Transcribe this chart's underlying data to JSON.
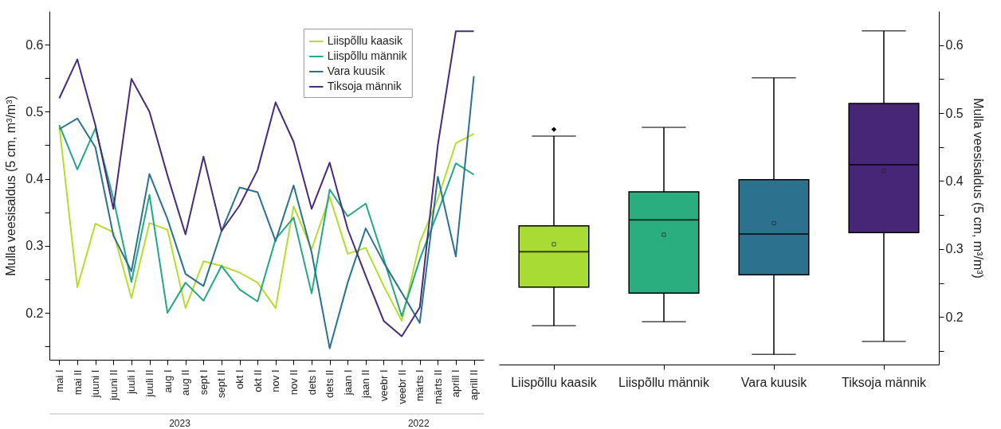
{
  "chart_data": [
    {
      "type": "line",
      "ylabel": "Mulla veesisaldus (5 cm, m³/m³)",
      "categories": [
        "mai I",
        "mai II",
        "juuni I",
        "juuni II",
        "juuli I",
        "juuli II",
        "aug I",
        "aug II",
        "sept I",
        "sept II",
        "okt I",
        "okt II",
        "nov I",
        "nov II",
        "dets I",
        "dets II",
        "jaan I",
        "jaan II",
        "veebr I",
        "veebr II",
        "märts I",
        "märts II",
        "aprill I",
        "aprill II"
      ],
      "series": [
        {
          "name": "Liispõllu kaasik",
          "color": "#b5de2b",
          "values": [
            0.478,
            0.238,
            0.333,
            0.32,
            0.222,
            0.334,
            0.324,
            0.207,
            0.277,
            0.27,
            0.26,
            0.245,
            0.207,
            0.359,
            0.295,
            0.373,
            0.288,
            0.297,
            0.24,
            0.188,
            0.305,
            0.37,
            0.453,
            0.467
          ]
        },
        {
          "name": "Liispõllu männik",
          "color": "#22a884",
          "values": [
            0.48,
            0.414,
            0.475,
            0.37,
            0.246,
            0.376,
            0.2,
            0.245,
            0.218,
            0.27,
            0.235,
            0.217,
            0.31,
            0.342,
            0.229,
            0.384,
            0.344,
            0.363,
            0.28,
            0.195,
            0.28,
            0.35,
            0.423,
            0.406
          ]
        },
        {
          "name": "Vara kuusik",
          "color": "#2c728e",
          "values": [
            0.474,
            0.49,
            0.447,
            0.315,
            0.262,
            0.407,
            0.34,
            0.258,
            0.24,
            0.322,
            0.387,
            0.38,
            0.307,
            0.39,
            0.29,
            0.147,
            0.245,
            0.326,
            0.275,
            0.23,
            0.185,
            0.403,
            0.284,
            0.553
          ]
        },
        {
          "name": "Tiksoja männik",
          "color": "#472c7a",
          "values": [
            0.52,
            0.578,
            0.48,
            0.355,
            0.549,
            0.5,
            0.405,
            0.317,
            0.433,
            0.322,
            0.36,
            0.413,
            0.514,
            0.455,
            0.355,
            0.424,
            0.325,
            0.255,
            0.188,
            0.165,
            0.208,
            0.45,
            0.62,
            0.62
          ]
        }
      ],
      "ylim": [
        0.13,
        0.65
      ],
      "yticks": [
        {
          "value": 0.15,
          "label": null
        },
        0.2,
        {
          "value": 0.25,
          "label": null
        },
        0.3,
        {
          "value": 0.35,
          "label": null
        },
        0.4,
        {
          "value": 0.45,
          "label": null
        },
        0.5,
        {
          "value": 0.55,
          "label": null
        },
        0.6
      ],
      "legend": "top right",
      "grid": false,
      "annotations": [
        "2023",
        "2022"
      ]
    },
    {
      "type": "box",
      "ylabel": "Mulla veesisaldus (5 cm, m³/m³)",
      "categories": [
        "Liispõllu kaasik",
        "Liispõllu männik",
        "Vara kuusik",
        "Tiksoja männik"
      ],
      "colors": [
        "#a8db34",
        "#2aae80",
        "#2c728e",
        "#482677"
      ],
      "boxes": [
        {
          "low": 0.187,
          "q1": 0.244,
          "median": 0.296,
          "q3": 0.334,
          "high": 0.466,
          "mean": 0.307,
          "outliers": [
            0.476
          ]
        },
        {
          "low": 0.193,
          "q1": 0.235,
          "median": 0.343,
          "q3": 0.384,
          "high": 0.479,
          "mean": 0.321
        },
        {
          "low": 0.145,
          "q1": 0.262,
          "median": 0.322,
          "q3": 0.402,
          "high": 0.552,
          "mean": 0.338
        },
        {
          "low": 0.164,
          "q1": 0.324,
          "median": 0.424,
          "q3": 0.514,
          "high": 0.621,
          "mean": 0.415
        }
      ],
      "ylim": [
        0.13,
        0.65
      ],
      "yticks": [
        {
          "value": 0.15,
          "label": null
        },
        0.2,
        {
          "value": 0.25,
          "label": null
        },
        0.3,
        {
          "value": 0.35,
          "label": null
        },
        0.4,
        {
          "value": 0.45,
          "label": null
        },
        0.5,
        {
          "value": 0.55,
          "label": null
        },
        0.6
      ],
      "grid": false
    }
  ]
}
